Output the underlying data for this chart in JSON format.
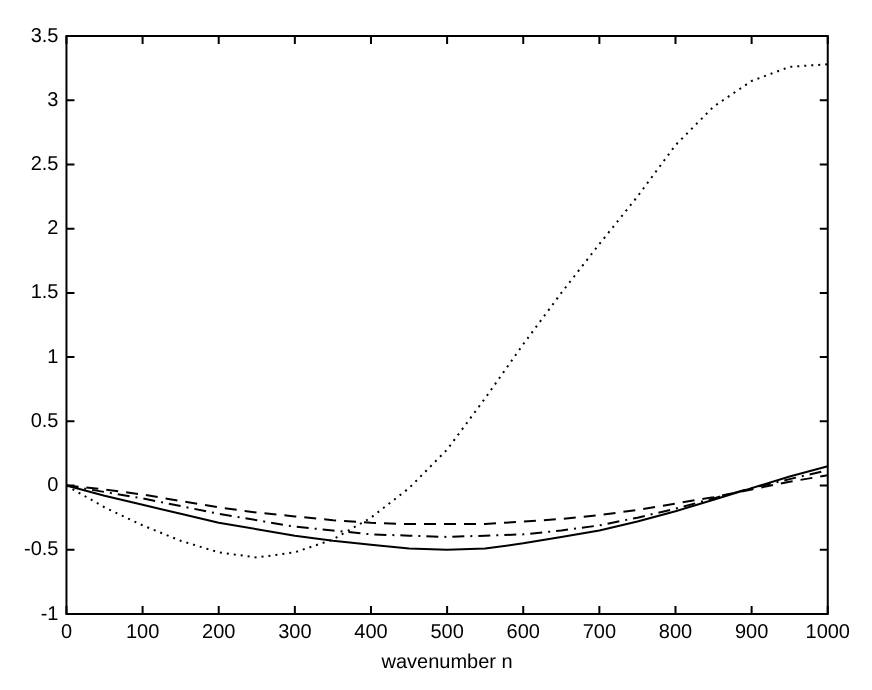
{
  "chart_data": {
    "type": "line",
    "xlabel": "wavenumber n",
    "x": [
      0,
      50,
      100,
      150,
      200,
      250,
      300,
      350,
      400,
      450,
      500,
      550,
      600,
      650,
      700,
      750,
      800,
      850,
      900,
      950,
      1000
    ],
    "series": [
      {
        "color": "#000000",
        "line_style": "solid",
        "values": [
          0,
          -0.08,
          -0.15,
          -0.22,
          -0.29,
          -0.34,
          -0.39,
          -0.43,
          -0.46,
          -0.49,
          -0.5,
          -0.49,
          -0.45,
          -0.4,
          -0.35,
          -0.28,
          -0.2,
          -0.11,
          -0.02,
          0.07,
          0.15
        ]
      },
      {
        "color": "#000000",
        "line_style": "dashed",
        "values": [
          0,
          -0.03,
          -0.07,
          -0.12,
          -0.17,
          -0.21,
          -0.24,
          -0.27,
          -0.29,
          -0.3,
          -0.3,
          -0.3,
          -0.28,
          -0.26,
          -0.23,
          -0.19,
          -0.14,
          -0.09,
          -0.03,
          0.03,
          0.08
        ]
      },
      {
        "color": "#000000",
        "line_style": "dashdot",
        "values": [
          0,
          -0.05,
          -0.1,
          -0.16,
          -0.22,
          -0.27,
          -0.32,
          -0.35,
          -0.38,
          -0.39,
          -0.4,
          -0.39,
          -0.38,
          -0.35,
          -0.31,
          -0.25,
          -0.18,
          -0.1,
          -0.02,
          0.05,
          0.12
        ]
      },
      {
        "color": "#000000",
        "line_style": "dotted",
        "values": [
          0,
          -0.17,
          -0.31,
          -0.43,
          -0.52,
          -0.56,
          -0.52,
          -0.42,
          -0.25,
          -0.02,
          0.28,
          0.68,
          1.1,
          1.5,
          1.88,
          2.25,
          2.65,
          2.95,
          3.15,
          3.26,
          3.28
        ]
      }
    ],
    "xlim": [
      0,
      1000
    ],
    "xticks": [
      0,
      100,
      200,
      300,
      400,
      500,
      600,
      700,
      800,
      900,
      1000
    ],
    "ylim": [
      -1,
      3.5
    ],
    "yticks": [
      -1,
      -0.5,
      0,
      0.5,
      1,
      1.5,
      2,
      2.5,
      3,
      3.5
    ],
    "grid": false,
    "legend": false,
    "marker": "none"
  }
}
